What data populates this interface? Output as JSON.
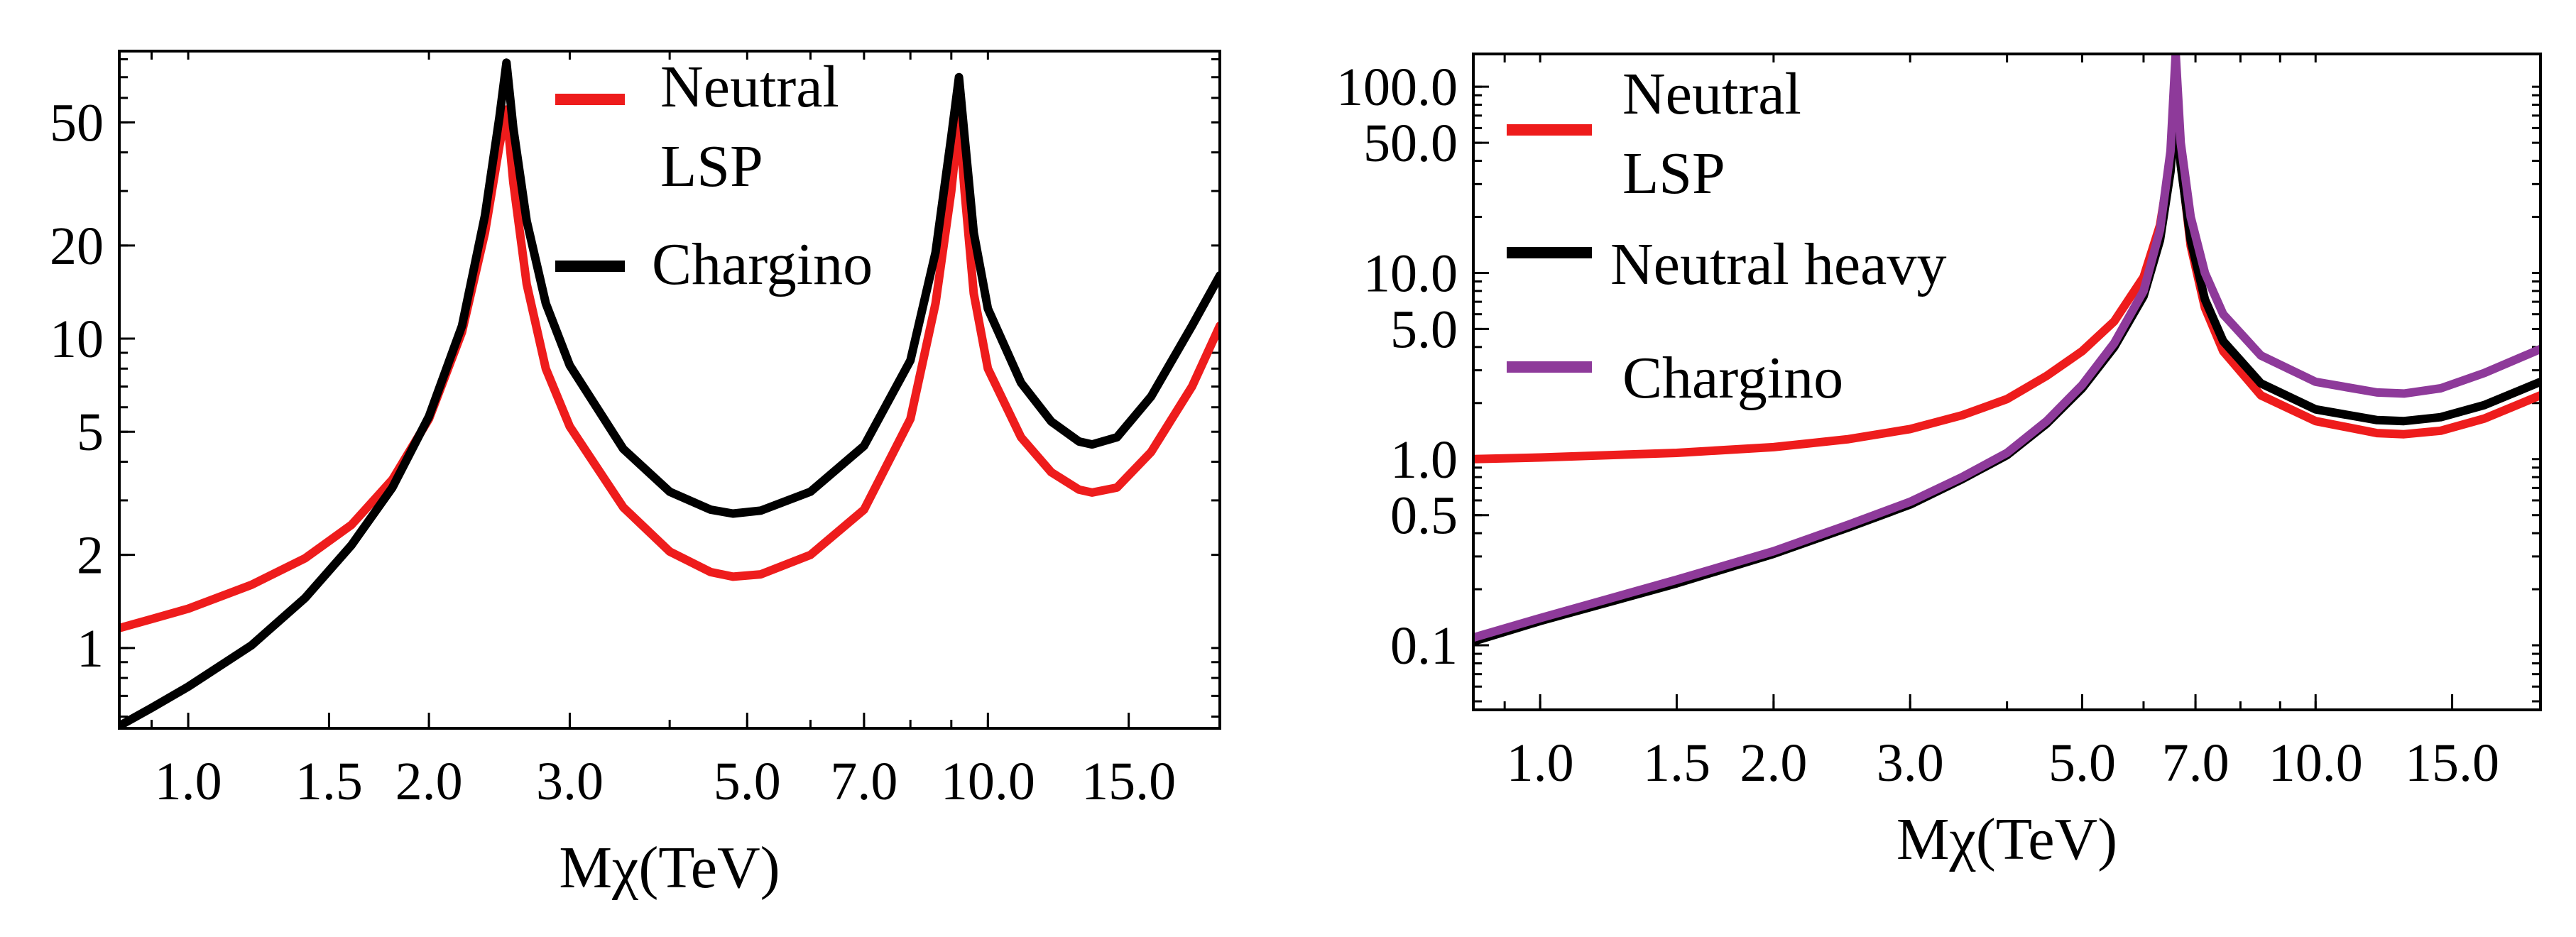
{
  "chart_data": [
    {
      "type": "line",
      "title": "",
      "xlabel": "Mχ(TeV)",
      "ylabel": "",
      "xscale": "log",
      "yscale": "log",
      "xlim": [
        0.82,
        19.5
      ],
      "ylim": [
        0.55,
        85
      ],
      "xticks": [
        {
          "v": 1.0,
          "label": "1.0"
        },
        {
          "v": 1.5,
          "label": "1.5"
        },
        {
          "v": 2.0,
          "label": "2.0"
        },
        {
          "v": 3.0,
          "label": "3.0"
        },
        {
          "v": 5.0,
          "label": "5.0"
        },
        {
          "v": 7.0,
          "label": "7.0"
        },
        {
          "v": 10.0,
          "label": "10.0"
        },
        {
          "v": 15.0,
          "label": "15.0"
        }
      ],
      "yticks": [
        {
          "v": 1,
          "label": "1"
        },
        {
          "v": 2,
          "label": "2"
        },
        {
          "v": 5,
          "label": "5"
        },
        {
          "v": 10,
          "label": "10"
        },
        {
          "v": 20,
          "label": "20"
        },
        {
          "v": 50,
          "label": "50"
        }
      ],
      "legend_position": "top-center",
      "series": [
        {
          "name": "Neutral\nLSP",
          "color": "#ee1c1c",
          "points": [
            [
              0.82,
              1.16
            ],
            [
              0.9,
              1.24
            ],
            [
              1.0,
              1.34
            ],
            [
              1.2,
              1.6
            ],
            [
              1.4,
              1.95
            ],
            [
              1.6,
              2.5
            ],
            [
              1.8,
              3.5
            ],
            [
              2.0,
              5.5
            ],
            [
              2.2,
              10.5
            ],
            [
              2.35,
              22
            ],
            [
              2.45,
              42
            ],
            [
              2.5,
              55
            ],
            [
              2.55,
              32
            ],
            [
              2.65,
              15
            ],
            [
              2.8,
              8
            ],
            [
              3.0,
              5.2
            ],
            [
              3.5,
              2.85
            ],
            [
              4.0,
              2.05
            ],
            [
              4.5,
              1.76
            ],
            [
              4.8,
              1.7
            ],
            [
              5.2,
              1.73
            ],
            [
              6.0,
              2.0
            ],
            [
              7.0,
              2.8
            ],
            [
              8.0,
              5.5
            ],
            [
              8.6,
              13
            ],
            [
              9.0,
              30
            ],
            [
              9.2,
              52
            ],
            [
              9.35,
              30
            ],
            [
              9.6,
              14
            ],
            [
              10.0,
              8
            ],
            [
              11.0,
              4.8
            ],
            [
              12.0,
              3.7
            ],
            [
              13.0,
              3.25
            ],
            [
              13.5,
              3.18
            ],
            [
              14.5,
              3.3
            ],
            [
              16.0,
              4.3
            ],
            [
              18.0,
              7.0
            ],
            [
              19.5,
              11.0
            ]
          ]
        },
        {
          "name": "Chargino",
          "color": "#000000",
          "points": [
            [
              0.82,
              0.56
            ],
            [
              0.9,
              0.64
            ],
            [
              1.0,
              0.75
            ],
            [
              1.2,
              1.02
            ],
            [
              1.4,
              1.45
            ],
            [
              1.6,
              2.15
            ],
            [
              1.8,
              3.3
            ],
            [
              2.0,
              5.6
            ],
            [
              2.2,
              11
            ],
            [
              2.35,
              25
            ],
            [
              2.45,
              52
            ],
            [
              2.5,
              78
            ],
            [
              2.55,
              48
            ],
            [
              2.65,
              24
            ],
            [
              2.8,
              13
            ],
            [
              3.0,
              8.2
            ],
            [
              3.5,
              4.4
            ],
            [
              4.0,
              3.2
            ],
            [
              4.5,
              2.8
            ],
            [
              4.8,
              2.72
            ],
            [
              5.2,
              2.78
            ],
            [
              6.0,
              3.2
            ],
            [
              7.0,
              4.5
            ],
            [
              8.0,
              8.5
            ],
            [
              8.6,
              19
            ],
            [
              9.0,
              45
            ],
            [
              9.2,
              70
            ],
            [
              9.35,
              45
            ],
            [
              9.6,
              22
            ],
            [
              10.0,
              12.5
            ],
            [
              11.0,
              7.2
            ],
            [
              12.0,
              5.4
            ],
            [
              13.0,
              4.65
            ],
            [
              13.5,
              4.55
            ],
            [
              14.5,
              4.8
            ],
            [
              16.0,
              6.5
            ],
            [
              18.0,
              11.0
            ],
            [
              19.5,
              16.0
            ]
          ]
        }
      ]
    },
    {
      "type": "line",
      "title": "",
      "xlabel": "Mχ(TeV)",
      "ylabel": "",
      "xscale": "log",
      "yscale": "log",
      "xlim": [
        0.82,
        19.5
      ],
      "ylim": [
        0.045,
        150
      ],
      "xticks": [
        {
          "v": 1.0,
          "label": "1.0"
        },
        {
          "v": 1.5,
          "label": "1.5"
        },
        {
          "v": 2.0,
          "label": "2.0"
        },
        {
          "v": 3.0,
          "label": "3.0"
        },
        {
          "v": 5.0,
          "label": "5.0"
        },
        {
          "v": 7.0,
          "label": "7.0"
        },
        {
          "v": 10.0,
          "label": "10.0"
        },
        {
          "v": 15.0,
          "label": "15.0"
        }
      ],
      "yticks": [
        {
          "v": 0.1,
          "label": "0.1"
        },
        {
          "v": 0.5,
          "label": "0.5"
        },
        {
          "v": 1.0,
          "label": "1.0"
        },
        {
          "v": 5.0,
          "label": "5.0"
        },
        {
          "v": 10.0,
          "label": "10.0"
        },
        {
          "v": 50.0,
          "label": "50.0"
        },
        {
          "v": 100.0,
          "label": "100.0"
        }
      ],
      "legend_position": "top-left",
      "series": [
        {
          "name": "Neutral\nLSP",
          "color": "#ee1c1c",
          "points": [
            [
              0.82,
              1.0
            ],
            [
              1.0,
              1.02
            ],
            [
              1.5,
              1.08
            ],
            [
              2.0,
              1.16
            ],
            [
              2.5,
              1.28
            ],
            [
              3.0,
              1.45
            ],
            [
              3.5,
              1.72
            ],
            [
              4.0,
              2.1
            ],
            [
              4.5,
              2.8
            ],
            [
              5.0,
              3.8
            ],
            [
              5.5,
              5.5
            ],
            [
              6.0,
              9.5
            ],
            [
              6.3,
              18
            ],
            [
              6.5,
              40
            ],
            [
              6.6,
              85
            ],
            [
              6.7,
              40
            ],
            [
              6.9,
              14
            ],
            [
              7.2,
              6.5
            ],
            [
              7.6,
              3.8
            ],
            [
              8.5,
              2.2
            ],
            [
              10.0,
              1.6
            ],
            [
              12.0,
              1.38
            ],
            [
              13.0,
              1.36
            ],
            [
              14.5,
              1.42
            ],
            [
              16.5,
              1.65
            ],
            [
              19.5,
              2.2
            ]
          ]
        },
        {
          "name": "Neutral heavy",
          "color": "#000000",
          "points": [
            [
              0.82,
              0.105
            ],
            [
              1.0,
              0.135
            ],
            [
              1.5,
              0.215
            ],
            [
              2.0,
              0.31
            ],
            [
              2.5,
              0.43
            ],
            [
              3.0,
              0.57
            ],
            [
              3.5,
              0.78
            ],
            [
              4.0,
              1.05
            ],
            [
              4.5,
              1.55
            ],
            [
              5.0,
              2.4
            ],
            [
              5.5,
              4.0
            ],
            [
              6.0,
              7.5
            ],
            [
              6.3,
              15
            ],
            [
              6.5,
              35
            ],
            [
              6.6,
              80
            ],
            [
              6.7,
              38
            ],
            [
              6.9,
              15
            ],
            [
              7.2,
              7.2
            ],
            [
              7.6,
              4.3
            ],
            [
              8.5,
              2.55
            ],
            [
              10.0,
              1.85
            ],
            [
              12.0,
              1.62
            ],
            [
              13.0,
              1.6
            ],
            [
              14.5,
              1.68
            ],
            [
              16.5,
              1.95
            ],
            [
              19.5,
              2.6
            ]
          ]
        },
        {
          "name": "Chargino",
          "color": "#8e3a9a",
          "points": [
            [
              0.82,
              0.11
            ],
            [
              1.0,
              0.14
            ],
            [
              1.5,
              0.225
            ],
            [
              2.0,
              0.32
            ],
            [
              2.5,
              0.445
            ],
            [
              3.0,
              0.59
            ],
            [
              3.5,
              0.8
            ],
            [
              4.0,
              1.08
            ],
            [
              4.5,
              1.6
            ],
            [
              5.0,
              2.5
            ],
            [
              5.5,
              4.2
            ],
            [
              6.0,
              8.0
            ],
            [
              6.3,
              17
            ],
            [
              6.5,
              45
            ],
            [
              6.6,
              150
            ],
            [
              6.7,
              50
            ],
            [
              6.9,
              20
            ],
            [
              7.2,
              10
            ],
            [
              7.6,
              6.0
            ],
            [
              8.5,
              3.6
            ],
            [
              10.0,
              2.6
            ],
            [
              12.0,
              2.28
            ],
            [
              13.0,
              2.25
            ],
            [
              14.5,
              2.4
            ],
            [
              16.5,
              2.9
            ],
            [
              19.5,
              3.9
            ]
          ]
        }
      ]
    }
  ]
}
